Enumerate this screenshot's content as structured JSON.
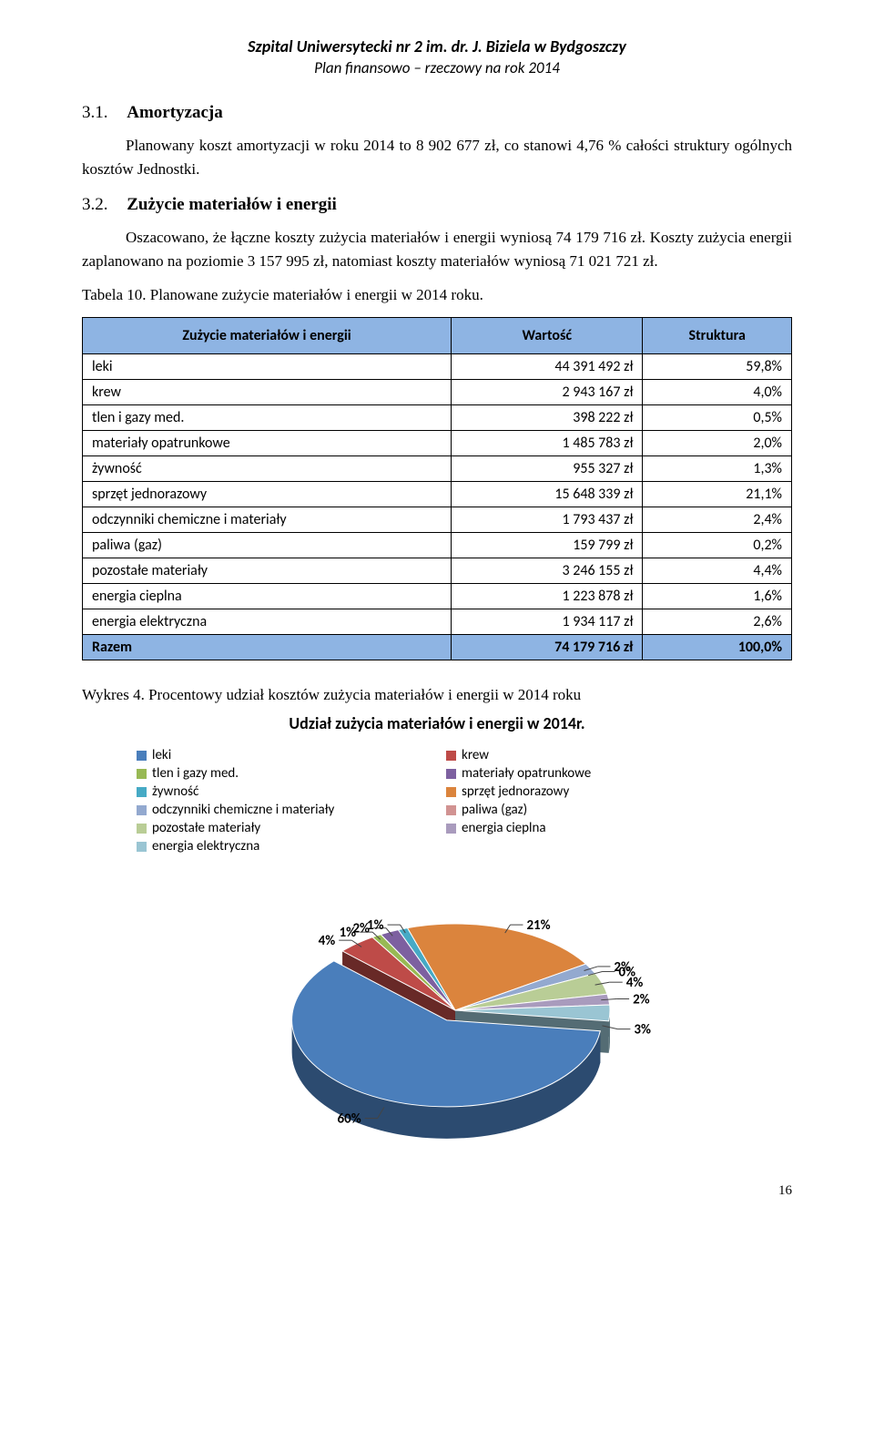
{
  "header": {
    "line1": "Szpital Uniwersytecki nr 2 im. dr. J. Biziela w Bydgoszczy",
    "line2": "Plan finansowo – rzeczowy na rok 2014"
  },
  "section_3_1": {
    "num": "3.1.",
    "label": "Amortyzacja"
  },
  "para_1": "Planowany koszt amortyzacji w roku 2014 to 8 902 677 zł, co stanowi 4,76 % całości struktury ogólnych kosztów Jednostki.",
  "section_3_2": {
    "num": "3.2.",
    "label": "Zużycie materiałów i energii"
  },
  "para_2": "Oszacowano, że łączne koszty zużycia materiałów i energii wyniosą 74 179 716 zł. Koszty zużycia energii zaplanowano na poziomie 3 157 995 zł, natomiast koszty materiałów wyniosą 71 021 721 zł.",
  "table_caption": "Tabela 10. Planowane zużycie materiałów i energii w 2014 roku.",
  "table": {
    "columns": [
      "Zużycie materiałów i energii",
      "Wartość",
      "Struktura"
    ],
    "rows": [
      [
        "leki",
        "44 391 492 zł",
        "59,8%"
      ],
      [
        "krew",
        "2 943 167 zł",
        "4,0%"
      ],
      [
        "tlen i gazy med.",
        "398 222 zł",
        "0,5%"
      ],
      [
        "materiały opatrunkowe",
        "1 485 783 zł",
        "2,0%"
      ],
      [
        "żywność",
        "955 327 zł",
        "1,3%"
      ],
      [
        "sprzęt jednorazowy",
        "15 648 339 zł",
        "21,1%"
      ],
      [
        "odczynniki chemiczne i materiały",
        "1 793 437 zł",
        "2,4%"
      ],
      [
        "paliwa (gaz)",
        "159 799 zł",
        "0,2%"
      ],
      [
        "pozostałe materiały",
        "3 246 155 zł",
        "4,4%"
      ],
      [
        "energia cieplna",
        "1 223 878 zł",
        "1,6%"
      ],
      [
        "energia elektryczna",
        "1 934 117 zł",
        "2,6%"
      ]
    ],
    "total": [
      "Razem",
      "74 179 716 zł",
      "100,0%"
    ],
    "header_bg": "#8eb4e3"
  },
  "chart_caption": "Wykres 4. Procentowy udział kosztów zużycia materiałów i energii w 2014 roku",
  "chart": {
    "type": "pie-3d",
    "title": "Udział zużycia materiałów i energii w 2014r.",
    "title_fontsize": 18,
    "label_fontsize": 15,
    "background_color": "#ffffff",
    "items": [
      {
        "label": "leki",
        "value": 60,
        "display": "60%",
        "color": "#4a7ebb"
      },
      {
        "label": "krew",
        "value": 4,
        "display": "4%",
        "color": "#be4b48"
      },
      {
        "label": "tlen i gazy med.",
        "value": 1,
        "display": "1%",
        "color": "#98b954"
      },
      {
        "label": "materiały opatrunkowe",
        "value": 2,
        "display": "2%",
        "color": "#7d60a0"
      },
      {
        "label": "żywność",
        "value": 1,
        "display": "1%",
        "color": "#46aac5"
      },
      {
        "label": "sprzęt jednorazowy",
        "value": 21,
        "display": "21%",
        "color": "#db843d"
      },
      {
        "label": "odczynniki chemiczne i materiały",
        "value": 2,
        "display": "2%",
        "color": "#93a9cf"
      },
      {
        "label": "paliwa (gaz)",
        "value": 0,
        "display": "0%",
        "color": "#d19392"
      },
      {
        "label": "pozostałe materiały",
        "value": 4,
        "display": "4%",
        "color": "#b9cd96"
      },
      {
        "label": "energia cieplna",
        "value": 2,
        "display": "2%",
        "color": "#a99bbd"
      },
      {
        "label": "energia elektryczna",
        "value": 3,
        "display": "3%",
        "color": "#9ac5d3"
      }
    ],
    "legend_columns": 2
  },
  "page_number": "16"
}
